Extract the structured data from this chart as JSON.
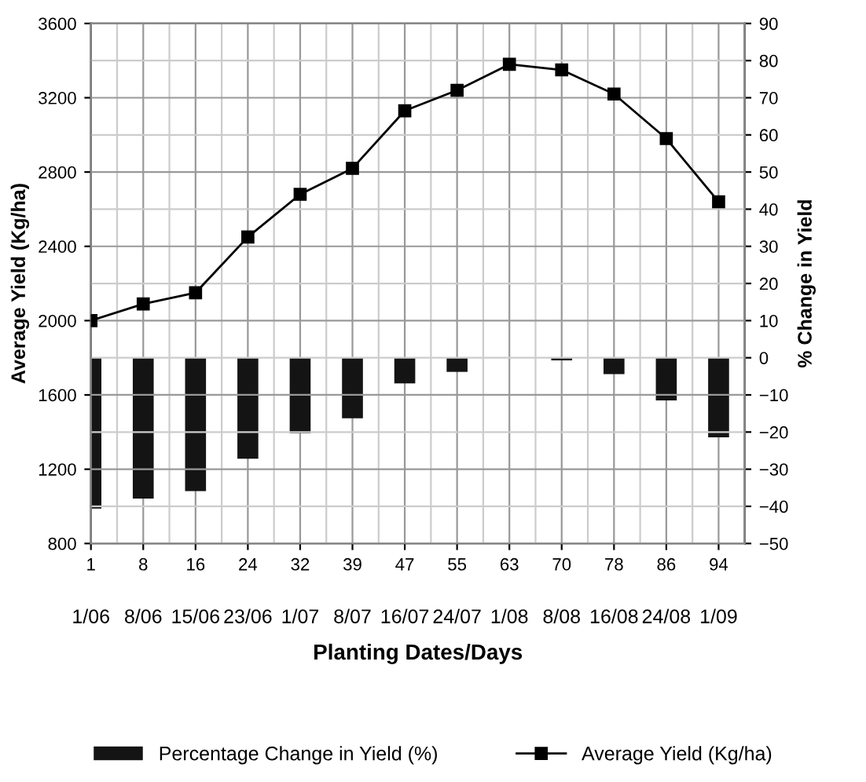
{
  "chart_data": {
    "type": "bar",
    "xlabel": "Planting Dates/Days",
    "ylabel": "Average Yield (Kg/ha)",
    "y2label": "% Change in Yield",
    "categories": [
      "1\n1/06",
      "8\n8/06",
      "16\n15/06",
      "24\n23/06",
      "32\n1/07",
      "39\n8/07",
      "47\n16/07",
      "55\n24/07",
      "63\n1/08",
      "70\n8/08",
      "78\n16/08",
      "86\n24/08",
      "94\n1/09"
    ],
    "series": [
      {
        "name": "Percentage Change in Yield (%)",
        "axis": "y2",
        "color": "#141414",
        "values": [
          -40.6,
          -37.9,
          -35.9,
          -27.2,
          -20.3,
          -16.3,
          -6.9,
          -3.8,
          0,
          -0.7,
          -4.4,
          -11.5,
          -21.4
        ]
      },
      {
        "name": "Average Yield (Kg/ha)",
        "type": "line",
        "color": "#000000",
        "marker": "square",
        "values": [
          2000,
          2090,
          2150,
          2450,
          2680,
          2820,
          3130,
          3240,
          3380,
          3350,
          3220,
          2980,
          2640
        ]
      }
    ],
    "ylim": [
      800,
      3600
    ],
    "yticks": [
      800,
      1200,
      1600,
      2000,
      2400,
      2800,
      3200,
      3600
    ],
    "y2lim": [
      -50,
      90
    ],
    "y2ticks": [
      -50,
      -40,
      -30,
      -20,
      -10,
      0,
      10,
      20,
      30,
      40,
      50,
      60,
      70,
      80,
      90
    ],
    "grid": true,
    "legend": "bottom"
  }
}
